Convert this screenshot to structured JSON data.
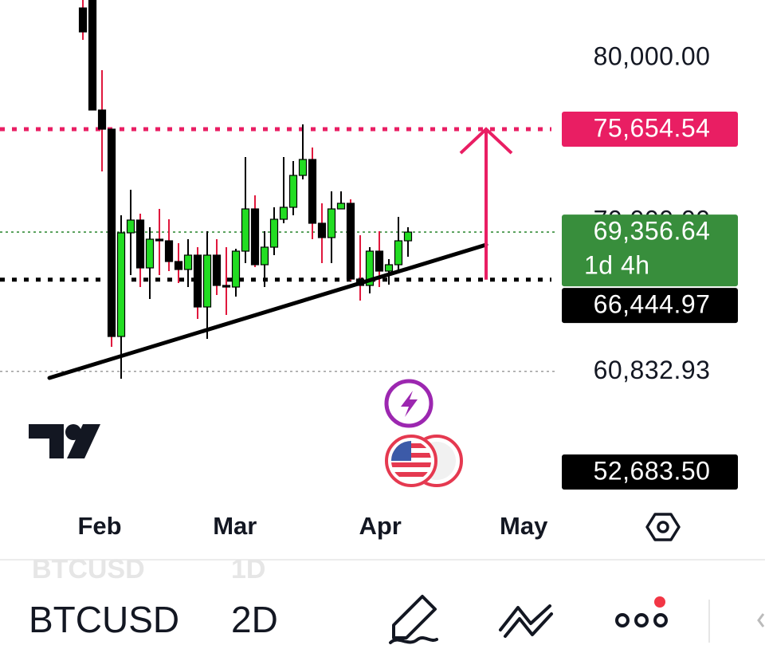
{
  "chart_data": {
    "type": "candlestick",
    "symbol": "BTCUSD",
    "interval": "2D",
    "previous_symbol": "BTCUSD",
    "previous_interval": "1D",
    "open": [
      83074,
      83900,
      76828,
      75656,
      62968,
      69312,
      70093,
      67165,
      68922,
      68824,
      67556,
      67068,
      67946,
      64774,
      67946,
      66092,
      65994,
      68190,
      70776,
      67360,
      68434,
      70142,
      70874,
      72826,
      73802,
      69898,
      69020,
      70776,
      71118,
      66482,
      66092,
      68190,
      66970,
      67360,
      68824
    ],
    "high": [
      84000,
      84500,
      79268,
      75656,
      70386,
      71948,
      70483,
      69654,
      70776,
      70142,
      68678,
      68922,
      68434,
      69410,
      68922,
      68434,
      68336,
      73948,
      71606,
      69410,
      70874,
      73948,
      73704,
      75949,
      74534,
      71118,
      71850,
      71850,
      71362,
      69166,
      68434,
      69410,
      67702,
      70288,
      69654
    ],
    "low": [
      81122,
      76828,
      73070,
      62334,
      60382,
      66726,
      65994,
      65262,
      66726,
      66970,
      66238,
      65994,
      64042,
      62822,
      65506,
      64286,
      65408,
      67458,
      67214,
      65994,
      67946,
      69898,
      70386,
      72582,
      68922,
      67458,
      67458,
      70776,
      66384,
      65164,
      65604,
      65994,
      66140,
      66970,
      67848
    ],
    "close": [
      81610,
      76828,
      75656,
      62968,
      69312,
      70093,
      67165,
      68922,
      68824,
      67556,
      67068,
      67946,
      64774,
      67946,
      66092,
      65994,
      68190,
      70776,
      67360,
      68434,
      70142,
      70874,
      72826,
      73802,
      69898,
      69020,
      70776,
      71118,
      66482,
      66092,
      68190,
      66970,
      67360,
      68824,
      69356.64
    ],
    "up_color": "#22dd22",
    "down_color": "#000000",
    "up_wick_color": "#000000",
    "down_wick_color": "#e0173c",
    "xlim": [
      -8.67,
      49.67
    ],
    "xticks": [
      {
        "value": 1.75,
        "label": "Feb"
      },
      {
        "value": 15.9,
        "label": "Mar"
      },
      {
        "value": 31.1,
        "label": "Apr"
      },
      {
        "value": 46.1,
        "label": "May"
      }
    ],
    "ylim": [
      52330,
      83562
    ],
    "yticks": [
      {
        "value": 80000,
        "label": "80,000.00"
      },
      {
        "value": 70000,
        "label": "70,000.00"
      }
    ],
    "grid": false,
    "price_lines": [
      {
        "value": 75654.54,
        "label": "75,654.54",
        "color": "#e91e63",
        "dash": "heavy",
        "box": true
      },
      {
        "value": 69356.64,
        "label": "69,356.64",
        "sublabel": "1d 4h",
        "color": "#388e3c",
        "dash": "light",
        "box": true
      },
      {
        "value": 66444.97,
        "label": "66,444.97",
        "color": "#000000",
        "dash": "heavy",
        "box": true
      },
      {
        "value": 60832.93,
        "label": "60,832.93",
        "color": "#9e9e9e",
        "dash": "light",
        "box": false
      },
      {
        "value": 52683.5,
        "label": "52,683.50",
        "color": "#000000",
        "dash": "none",
        "box": true
      }
    ],
    "trendline": {
      "x": [
        -3.5,
        42.17
      ],
      "y": [
        60432,
        68580
      ],
      "color": "#000000"
    },
    "arrow_color": "#e91e63"
  }
}
